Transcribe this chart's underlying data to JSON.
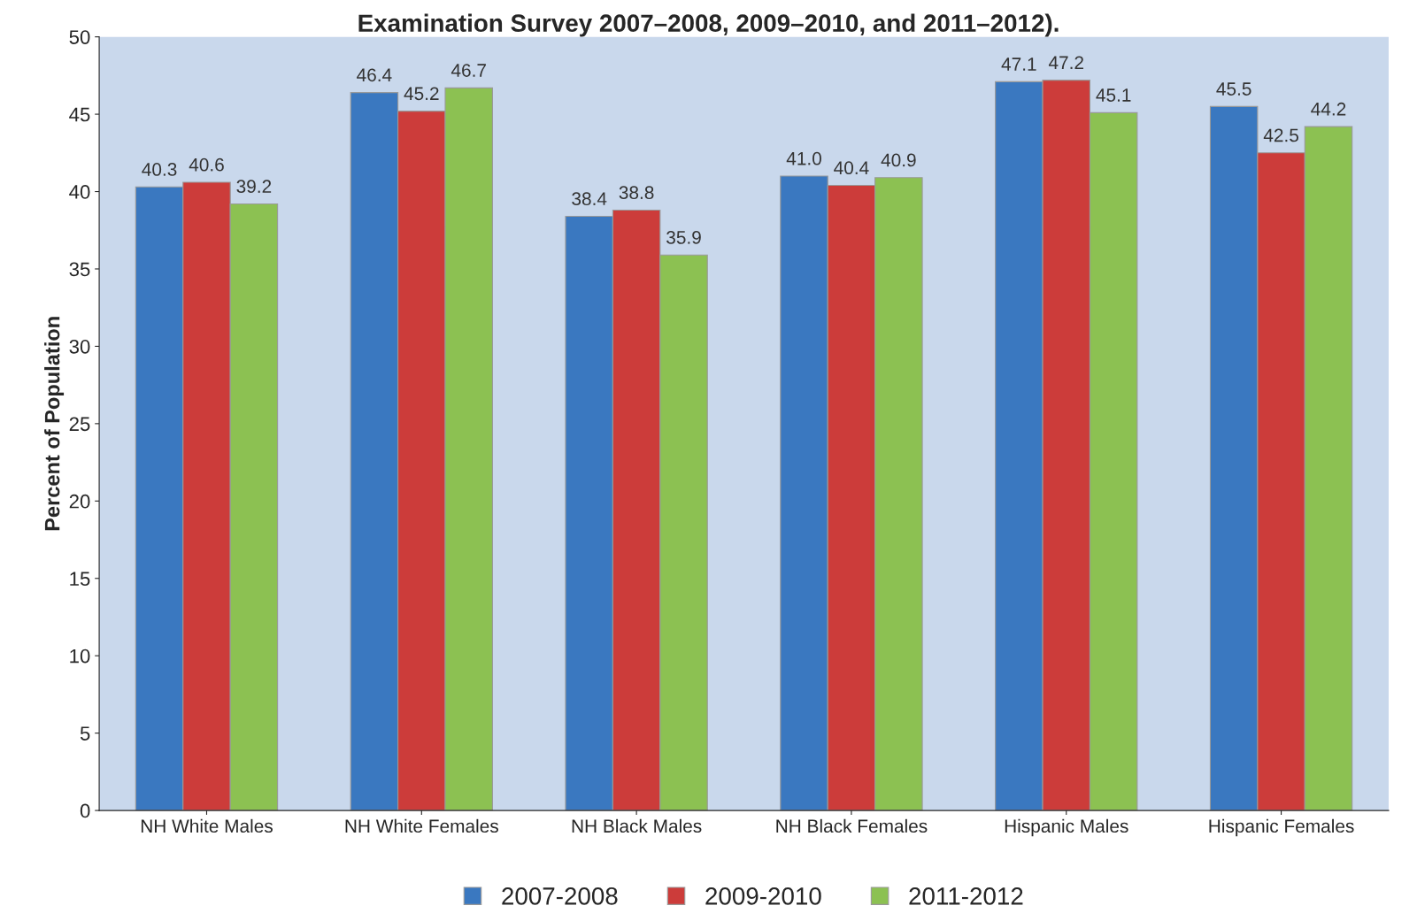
{
  "chart_data": {
    "type": "bar",
    "title": "Examination Survey 2007–2008, 2009–2010, and 2011–2012).",
    "ylabel": "Percent of Population",
    "categories": [
      "NH White Males",
      "NH White Females",
      "NH Black Males",
      "NH Black Females",
      "Hispanic Males",
      "Hispanic Females"
    ],
    "series": [
      {
        "name": "2007-2008",
        "color": "#3a78c0",
        "values": [
          40.3,
          46.4,
          38.4,
          41.0,
          47.1,
          45.5
        ],
        "value_labels": [
          "40.3",
          "46.4",
          "38.4",
          "41.0",
          "47.1",
          "45.5"
        ]
      },
      {
        "name": "2009-2010",
        "color": "#cc3c3a",
        "values": [
          40.6,
          45.2,
          38.8,
          40.4,
          47.2,
          42.5
        ],
        "value_labels": [
          "40.6",
          "45.2",
          "38.8",
          "40.4",
          "47.2",
          "42.5"
        ]
      },
      {
        "name": "2011-2012",
        "color": "#8cc152",
        "values": [
          39.2,
          46.7,
          35.9,
          40.9,
          45.1,
          44.2
        ],
        "value_labels": [
          "39.2",
          "46.7",
          "35.9",
          "40.9",
          "45.1",
          "44.2"
        ]
      }
    ],
    "ylim": [
      0,
      50
    ],
    "yticks": [
      0,
      5,
      10,
      15,
      20,
      25,
      30,
      35,
      40,
      45,
      50
    ],
    "grid": false,
    "legend": "bottom"
  }
}
